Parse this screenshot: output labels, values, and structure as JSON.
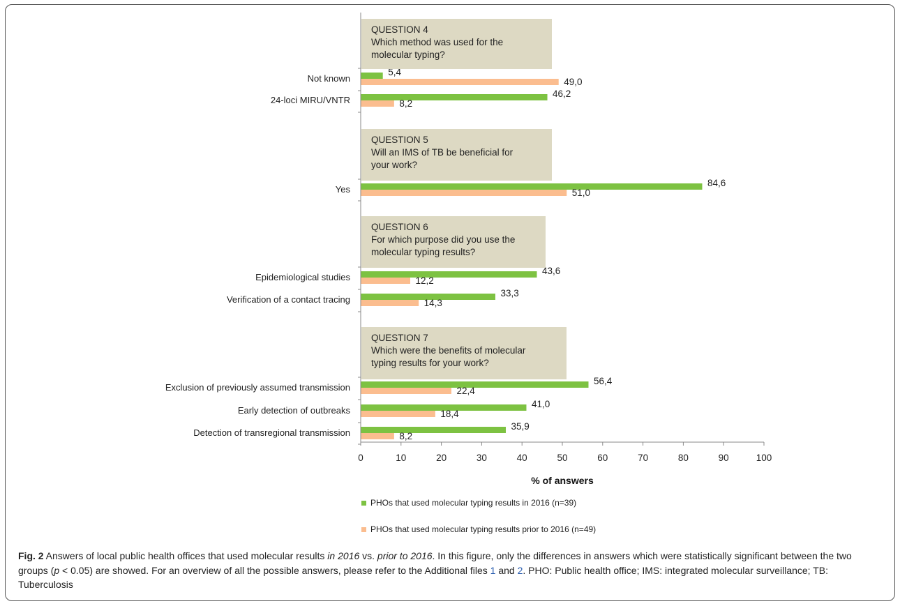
{
  "chart_data": {
    "type": "bar",
    "orientation": "horizontal",
    "xlabel": "% of answers",
    "xlim": [
      0,
      100
    ],
    "xticks": [
      "0",
      "10",
      "20",
      "30",
      "40",
      "50",
      "60",
      "70",
      "80",
      "90",
      "100"
    ],
    "groups": [
      {
        "lines": [
          "QUESTION 4",
          "Which method was used for the",
          "molecular typing?"
        ],
        "categories": [
          "Not known",
          "24-loci MIRU/VNTR"
        ]
      },
      {
        "lines": [
          "QUESTION 5",
          "Will an IMS of TB be beneficial for",
          "your work?"
        ],
        "categories": [
          "Yes"
        ]
      },
      {
        "lines": [
          "QUESTION 6",
          "For which purpose did you use the",
          "molecular typing results?"
        ],
        "categories": [
          "Epidemiological studies",
          "Verification of a contact tracing"
        ]
      },
      {
        "lines": [
          "QUESTION 7",
          "Which were the benefits of molecular",
          "typing results for your work?"
        ],
        "categories": [
          "Exclusion of previously assumed transmission",
          "Early detection of outbreaks",
          "Detection of transregional transmission"
        ]
      }
    ],
    "categories": [
      "Not known",
      "24-loci MIRU/VNTR",
      "Yes",
      "Epidemiological studies",
      "Verification of a contact tracing",
      "Exclusion of previously assumed transmission",
      "Early detection of outbreaks",
      "Detection of transregional transmission"
    ],
    "series": [
      {
        "name": "PHOs that used molecular typing results in 2016 (n=39)",
        "color": "#7dc242",
        "values": [
          5.4,
          46.2,
          84.6,
          43.6,
          33.3,
          56.4,
          41.0,
          35.9
        ],
        "labels": [
          "5,4",
          "46,2",
          "84,6",
          "43,6",
          "33,3",
          "56,4",
          "41,0",
          "35,9"
        ]
      },
      {
        "name": "PHOs that used molecular typing results prior to 2016 (n=49)",
        "color": "#fbbd8f",
        "values": [
          49.0,
          8.2,
          51.0,
          12.2,
          14.3,
          22.4,
          18.4,
          8.2
        ],
        "labels": [
          "49,0",
          "8,2",
          "51,0",
          "12,2",
          "14,3",
          "22,4",
          "18,4",
          "8,2"
        ]
      }
    ]
  },
  "caption": {
    "fig_label": "Fig. 2",
    "t1": " Answers of local public health offices that used molecular results ",
    "i1": "in 2016",
    "t2": " vs. ",
    "i2": "prior to 2016",
    "t3": ". In this figure, only the differences in answers which were statistically significant between the two groups (",
    "i3": "p",
    "t4": " < 0.05) are showed. For an overview of all the possible answers, please refer to the Additional files ",
    "link1": "1",
    "t5": " and ",
    "link2": "2",
    "t6": ". PHO: Public health office; IMS: integrated molecular surveillance; TB: Tuberculosis"
  }
}
